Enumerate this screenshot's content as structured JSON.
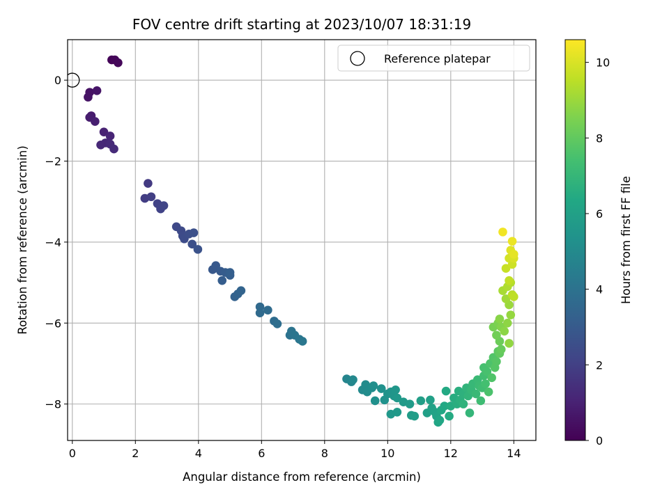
{
  "chart_data": {
    "type": "scatter",
    "title": "FOV centre drift starting at 2023/10/07 18:31:19",
    "xlabel": "Angular distance from reference (arcmin)",
    "ylabel": "Rotation from reference (arcmin)",
    "xlim": [
      -0.15,
      14.7
    ],
    "ylim": [
      -8.9,
      1.0
    ],
    "xticks": [
      0,
      2,
      4,
      6,
      8,
      10,
      12,
      14
    ],
    "yticks": [
      0,
      -2,
      -4,
      -6,
      -8
    ],
    "grid": true,
    "legend": {
      "position": "top-right",
      "entries": [
        "Reference platepar"
      ]
    },
    "reference_point": {
      "x": 0,
      "y": 0
    },
    "colorbar": {
      "label": "Hours from first FF file",
      "colormap": "viridis",
      "range": [
        0,
        10.6
      ],
      "ticks": [
        0,
        2,
        4,
        6,
        8,
        10
      ]
    },
    "points": [
      [
        1.25,
        0.5,
        0.1
      ],
      [
        1.35,
        0.5,
        0.15
      ],
      [
        1.45,
        0.43,
        0.2
      ],
      [
        0.55,
        -0.3,
        0.5
      ],
      [
        0.5,
        -0.42,
        0.55
      ],
      [
        0.78,
        -0.26,
        0.6
      ],
      [
        0.6,
        -0.88,
        0.8
      ],
      [
        0.55,
        -0.92,
        0.85
      ],
      [
        0.72,
        -1.02,
        0.9
      ],
      [
        1.0,
        -1.28,
        1.0
      ],
      [
        1.2,
        -1.38,
        1.1
      ],
      [
        1.05,
        -1.55,
        1.15
      ],
      [
        0.9,
        -1.6,
        1.2
      ],
      [
        1.2,
        -1.58,
        1.25
      ],
      [
        1.32,
        -1.7,
        1.3
      ],
      [
        2.4,
        -2.55,
        1.8
      ],
      [
        2.3,
        -2.92,
        1.9
      ],
      [
        2.5,
        -2.88,
        1.95
      ],
      [
        2.7,
        -3.05,
        2.05
      ],
      [
        2.8,
        -3.18,
        2.1
      ],
      [
        2.9,
        -3.1,
        2.15
      ],
      [
        3.3,
        -3.62,
        2.3
      ],
      [
        3.45,
        -3.72,
        2.35
      ],
      [
        3.5,
        -3.85,
        2.4
      ],
      [
        3.55,
        -3.92,
        2.45
      ],
      [
        3.7,
        -3.8,
        2.5
      ],
      [
        3.8,
        -4.05,
        2.55
      ],
      [
        3.85,
        -3.77,
        2.6
      ],
      [
        3.98,
        -4.18,
        2.65
      ],
      [
        4.45,
        -4.68,
        2.9
      ],
      [
        4.55,
        -4.58,
        2.95
      ],
      [
        4.7,
        -4.72,
        3.0
      ],
      [
        4.85,
        -4.75,
        3.05
      ],
      [
        4.75,
        -4.95,
        3.1
      ],
      [
        5.0,
        -4.82,
        3.15
      ],
      [
        5.0,
        -4.75,
        3.2
      ],
      [
        5.15,
        -5.35,
        3.3
      ],
      [
        5.25,
        -5.28,
        3.35
      ],
      [
        5.35,
        -5.2,
        3.4
      ],
      [
        5.95,
        -5.6,
        3.6
      ],
      [
        5.95,
        -5.75,
        3.65
      ],
      [
        6.2,
        -5.68,
        3.7
      ],
      [
        6.4,
        -5.95,
        3.75
      ],
      [
        6.5,
        -6.02,
        3.8
      ],
      [
        6.9,
        -6.3,
        4.0
      ],
      [
        6.95,
        -6.2,
        4.05
      ],
      [
        7.05,
        -6.3,
        4.1
      ],
      [
        7.2,
        -6.4,
        4.15
      ],
      [
        7.3,
        -6.45,
        4.2
      ],
      [
        8.7,
        -7.38,
        4.8
      ],
      [
        8.85,
        -7.45,
        4.85
      ],
      [
        8.9,
        -7.4,
        4.9
      ],
      [
        9.2,
        -7.65,
        5.0
      ],
      [
        9.3,
        -7.52,
        5.05
      ],
      [
        9.35,
        -7.7,
        5.1
      ],
      [
        9.5,
        -7.6,
        5.15
      ],
      [
        9.55,
        -7.55,
        5.2
      ],
      [
        9.6,
        -7.92,
        5.25
      ],
      [
        9.8,
        -7.62,
        5.3
      ],
      [
        9.9,
        -7.9,
        5.35
      ],
      [
        10.0,
        -7.75,
        5.4
      ],
      [
        10.1,
        -7.7,
        5.45
      ],
      [
        10.2,
        -7.8,
        5.5
      ],
      [
        10.25,
        -7.65,
        5.55
      ],
      [
        10.3,
        -7.85,
        5.6
      ],
      [
        10.1,
        -8.25,
        5.6
      ],
      [
        10.3,
        -8.2,
        5.65
      ],
      [
        10.5,
        -7.95,
        5.7
      ],
      [
        10.7,
        -8.0,
        5.75
      ],
      [
        10.75,
        -8.28,
        5.8
      ],
      [
        10.85,
        -8.3,
        5.85
      ],
      [
        11.05,
        -7.92,
        5.9
      ],
      [
        11.25,
        -8.22,
        5.95
      ],
      [
        11.35,
        -7.9,
        6.0
      ],
      [
        11.4,
        -8.1,
        6.05
      ],
      [
        11.5,
        -8.2,
        6.1
      ],
      [
        11.55,
        -8.3,
        6.15
      ],
      [
        11.6,
        -8.45,
        6.2
      ],
      [
        11.65,
        -8.4,
        6.25
      ],
      [
        11.7,
        -8.15,
        6.3
      ],
      [
        11.8,
        -8.05,
        6.35
      ],
      [
        11.85,
        -7.68,
        6.4
      ],
      [
        11.95,
        -8.3,
        6.45
      ],
      [
        12.0,
        -8.05,
        6.5
      ],
      [
        12.1,
        -7.85,
        6.55
      ],
      [
        12.2,
        -8.0,
        6.6
      ],
      [
        12.25,
        -7.68,
        6.65
      ],
      [
        12.3,
        -7.9,
        6.7
      ],
      [
        12.4,
        -7.75,
        6.75
      ],
      [
        12.4,
        -8.0,
        6.8
      ],
      [
        12.5,
        -7.6,
        6.85
      ],
      [
        12.55,
        -7.8,
        6.9
      ],
      [
        12.6,
        -8.22,
        6.95
      ],
      [
        12.65,
        -7.65,
        7.0
      ],
      [
        12.7,
        -7.5,
        7.05
      ],
      [
        12.8,
        -7.75,
        7.1
      ],
      [
        12.85,
        -7.4,
        7.15
      ],
      [
        12.9,
        -7.55,
        7.2
      ],
      [
        12.95,
        -7.92,
        7.25
      ],
      [
        13.0,
        -7.6,
        7.3
      ],
      [
        13.05,
        -7.3,
        7.35
      ],
      [
        13.1,
        -7.5,
        7.4
      ],
      [
        13.05,
        -7.1,
        7.45
      ],
      [
        13.15,
        -7.2,
        7.5
      ],
      [
        13.2,
        -7.7,
        7.55
      ],
      [
        13.25,
        -7.0,
        7.6
      ],
      [
        13.3,
        -7.35,
        7.65
      ],
      [
        13.35,
        -6.85,
        7.7
      ],
      [
        13.4,
        -7.1,
        7.75
      ],
      [
        13.45,
        -6.95,
        7.8
      ],
      [
        13.5,
        -6.7,
        7.9
      ],
      [
        13.55,
        -6.75,
        8.0
      ],
      [
        13.6,
        -6.65,
        8.1
      ],
      [
        13.55,
        -6.45,
        8.2
      ],
      [
        13.45,
        -6.3,
        8.3
      ],
      [
        13.35,
        -6.1,
        8.4
      ],
      [
        13.5,
        -6.0,
        8.5
      ],
      [
        13.6,
        -6.1,
        8.6
      ],
      [
        13.55,
        -5.9,
        8.7
      ],
      [
        13.7,
        -6.2,
        8.75
      ],
      [
        13.8,
        -6.0,
        8.8
      ],
      [
        13.85,
        -6.5,
        8.85
      ],
      [
        13.9,
        -5.8,
        8.9
      ],
      [
        13.85,
        -5.55,
        9.0
      ],
      [
        13.75,
        -5.4,
        9.1
      ],
      [
        13.65,
        -5.2,
        9.2
      ],
      [
        13.8,
        -5.1,
        9.3
      ],
      [
        13.9,
        -5.0,
        9.4
      ],
      [
        13.95,
        -5.3,
        9.5
      ],
      [
        14.0,
        -5.35,
        9.55
      ],
      [
        13.85,
        -4.95,
        9.6
      ],
      [
        13.75,
        -4.65,
        9.7
      ],
      [
        13.95,
        -4.55,
        9.8
      ],
      [
        13.85,
        -4.4,
        9.9
      ],
      [
        14.0,
        -4.4,
        10.0
      ],
      [
        13.9,
        -4.2,
        10.1
      ],
      [
        14.0,
        -4.3,
        10.2
      ],
      [
        13.95,
        -3.98,
        10.3
      ],
      [
        13.65,
        -3.75,
        10.4
      ]
    ]
  }
}
